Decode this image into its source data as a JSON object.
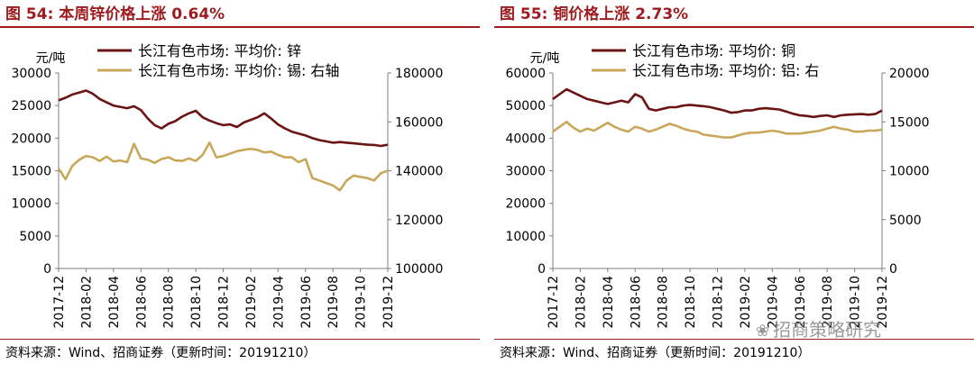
{
  "colors": {
    "accent": "#9e1b1f",
    "series_dark": "#6b1414",
    "series_gold": "#c9a75a",
    "axis": "#7f7f7f"
  },
  "watermark": {
    "icon": "wechat-icon",
    "text": "招商策略研究"
  },
  "chart_data": [
    {
      "type": "line",
      "title": "图 54:  本周锌价格上涨 0.64%",
      "ylabel": "元/吨",
      "source": "资料来源：Wind、招商证券（更新时间：20191210）",
      "x_ticks": [
        "2017-12",
        "2018-02",
        "2018-04",
        "2018-06",
        "2018-08",
        "2018-10",
        "2018-12",
        "2019-02",
        "2019-04",
        "2019-06",
        "2019-08",
        "2019-10",
        "2019-12"
      ],
      "x_range": [
        0,
        24
      ],
      "y_left": {
        "min": 0,
        "max": 30000,
        "ticks": [
          "0",
          "5000",
          "10000",
          "15000",
          "20000",
          "25000",
          "30000"
        ]
      },
      "y_right": {
        "min": 100000,
        "max": 180000,
        "ticks": [
          "100000",
          "120000",
          "140000",
          "160000",
          "180000"
        ]
      },
      "legend_position": "top",
      "grid": false,
      "series": [
        {
          "name": "长江有色市场: 平均价: 锌",
          "axis": "left",
          "color": "#6b1414",
          "x": [
            0,
            0.5,
            1,
            1.5,
            2,
            2.5,
            3,
            3.5,
            4,
            4.5,
            5,
            5.5,
            6,
            6.5,
            7,
            7.5,
            8,
            8.5,
            9,
            9.5,
            10,
            10.5,
            11,
            11.5,
            12,
            12.5,
            13,
            13.5,
            14,
            14.5,
            15,
            15.5,
            16,
            16.5,
            17,
            17.5,
            18,
            18.5,
            19,
            19.5,
            20,
            20.5,
            21,
            21.5,
            22,
            22.5,
            23,
            23.5,
            24
          ],
          "values": [
            25800,
            26200,
            26700,
            27000,
            27300,
            26800,
            26000,
            25500,
            25000,
            24800,
            24600,
            24900,
            24300,
            23000,
            22000,
            21500,
            22200,
            22600,
            23300,
            23800,
            24200,
            23200,
            22700,
            22300,
            22000,
            22100,
            21700,
            22400,
            22800,
            23200,
            23800,
            23000,
            22100,
            21500,
            21000,
            20700,
            20400,
            20000,
            19700,
            19500,
            19300,
            19400,
            19300,
            19200,
            19100,
            19000,
            18950,
            18800,
            19000
          ]
        },
        {
          "name": "长江有色市场: 平均价: 锡: 右轴",
          "axis": "right",
          "color": "#c9a75a",
          "x": [
            0,
            0.5,
            1,
            1.5,
            2,
            2.5,
            3,
            3.5,
            4,
            4.5,
            5,
            5.5,
            6,
            6.5,
            7,
            7.5,
            8,
            8.5,
            9,
            9.5,
            10,
            10.5,
            11,
            11.5,
            12,
            12.5,
            13,
            13.5,
            14,
            14.5,
            15,
            15.5,
            16,
            16.5,
            17,
            17.5,
            18,
            18.5,
            19,
            19.5,
            20,
            20.5,
            21,
            21.5,
            22,
            22.5,
            23,
            23.5,
            24
          ],
          "values": [
            141000,
            136500,
            142000,
            144500,
            146000,
            145500,
            144000,
            145800,
            143800,
            144200,
            143500,
            151000,
            145000,
            144500,
            143200,
            144800,
            145500,
            144200,
            144000,
            145000,
            144000,
            146500,
            151500,
            145500,
            146000,
            147000,
            148000,
            148500,
            149000,
            148500,
            147500,
            147800,
            146500,
            145500,
            145500,
            143500,
            144800,
            137000,
            136000,
            135000,
            134000,
            132000,
            136000,
            138000,
            137500,
            137000,
            136000,
            139000,
            140000
          ]
        }
      ]
    },
    {
      "type": "line",
      "title": "图 55:  铜价格上涨 2.73%",
      "ylabel": "元/吨",
      "source": "资料来源：Wind、招商证券（更新时间：20191210）",
      "x_ticks": [
        "2017-12",
        "2018-02",
        "2018-04",
        "2018-06",
        "2018-08",
        "2018-10",
        "2018-12",
        "2019-02",
        "2019-04",
        "2019-06",
        "2019-08",
        "2019-10",
        "2019-12"
      ],
      "x_range": [
        0,
        24
      ],
      "y_left": {
        "min": 0,
        "max": 60000,
        "ticks": [
          "0",
          "10000",
          "20000",
          "30000",
          "40000",
          "50000",
          "60000"
        ]
      },
      "y_right": {
        "min": 0,
        "max": 20000,
        "ticks": [
          "0",
          "5000",
          "10000",
          "15000",
          "20000"
        ]
      },
      "legend_position": "top",
      "grid": false,
      "series": [
        {
          "name": "长江有色市场: 平均价: 铜",
          "axis": "left",
          "color": "#6b1414",
          "x": [
            0,
            0.5,
            1,
            1.5,
            2,
            2.5,
            3,
            3.5,
            4,
            4.5,
            5,
            5.5,
            6,
            6.5,
            7,
            7.5,
            8,
            8.5,
            9,
            9.5,
            10,
            10.5,
            11,
            11.5,
            12,
            12.5,
            13,
            13.5,
            14,
            14.5,
            15,
            15.5,
            16,
            16.5,
            17,
            17.5,
            18,
            18.5,
            19,
            19.5,
            20,
            20.5,
            21,
            21.5,
            22,
            22.5,
            23,
            23.5,
            24
          ],
          "values": [
            52000,
            53500,
            55000,
            54000,
            53000,
            52000,
            51500,
            51000,
            50500,
            51000,
            51500,
            51000,
            53500,
            52500,
            49000,
            48500,
            49000,
            49500,
            49500,
            50000,
            50200,
            50000,
            49800,
            49500,
            49000,
            48500,
            47800,
            48000,
            48500,
            48500,
            49000,
            49200,
            49000,
            48800,
            48200,
            47500,
            47000,
            46800,
            46500,
            46800,
            47000,
            46500,
            47000,
            47200,
            47300,
            47400,
            47200,
            47400,
            48500
          ]
        },
        {
          "name": "长江有色市场: 平均价: 铝: 右",
          "axis": "right",
          "color": "#c9a75a",
          "x": [
            0,
            0.5,
            1,
            1.5,
            2,
            2.5,
            3,
            3.5,
            4,
            4.5,
            5,
            5.5,
            6,
            6.5,
            7,
            7.5,
            8,
            8.5,
            9,
            9.5,
            10,
            10.5,
            11,
            11.5,
            12,
            12.5,
            13,
            13.5,
            14,
            14.5,
            15,
            15.5,
            16,
            16.5,
            17,
            17.5,
            18,
            18.5,
            19,
            19.5,
            20,
            20.5,
            21,
            21.5,
            22,
            22.5,
            23,
            23.5,
            24
          ],
          "values": [
            14000,
            14500,
            15000,
            14400,
            14000,
            14300,
            14100,
            14500,
            14900,
            14500,
            14200,
            14000,
            14500,
            14300,
            14000,
            14200,
            14500,
            14800,
            14600,
            14300,
            14100,
            14000,
            13700,
            13600,
            13500,
            13400,
            13400,
            13600,
            13800,
            13900,
            13900,
            14000,
            14100,
            14000,
            13800,
            13800,
            13800,
            13900,
            14000,
            14100,
            14300,
            14500,
            14300,
            14200,
            14000,
            14000,
            14100,
            14100,
            14200
          ]
        }
      ]
    }
  ]
}
